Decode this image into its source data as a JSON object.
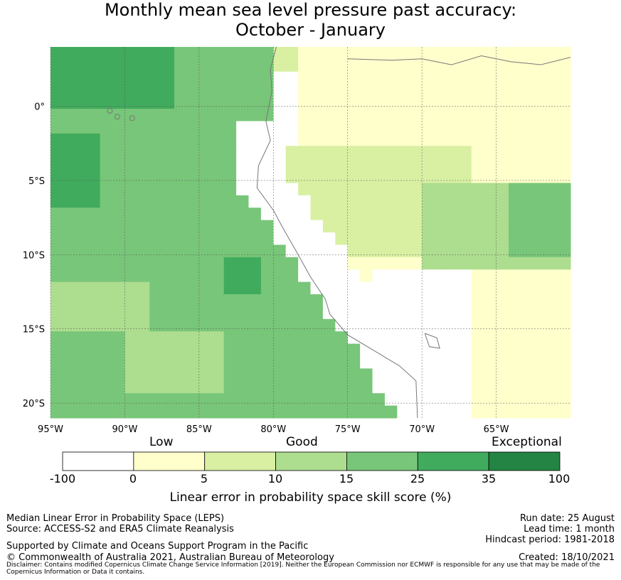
{
  "title": {
    "line1": "Monthly mean sea level pressure past accuracy:",
    "line2": "October - January"
  },
  "map": {
    "lon_range": [
      -95,
      -60
    ],
    "lat_range": [
      -21,
      4
    ],
    "x_ticks": [
      {
        "lon": -95,
        "label": "95°W"
      },
      {
        "lon": -90,
        "label": "90°W"
      },
      {
        "lon": -85,
        "label": "85°W"
      },
      {
        "lon": -80,
        "label": "80°W"
      },
      {
        "lon": -75,
        "label": "75°W"
      },
      {
        "lon": -70,
        "label": "70°W"
      },
      {
        "lon": -65,
        "label": "65°W"
      }
    ],
    "y_ticks": [
      {
        "lat": 0,
        "label": "0°"
      },
      {
        "lat": -5,
        "label": "5°S"
      },
      {
        "lat": -10,
        "label": "10°S"
      },
      {
        "lat": -15,
        "label": "15°S"
      },
      {
        "lat": -20,
        "label": "20°S"
      }
    ],
    "grid": true,
    "coastline_color": "#777777"
  },
  "colorbar": {
    "categories": [
      "Low",
      "Good",
      "Exceptional"
    ],
    "bounds": [
      "-100",
      "0",
      "5",
      "10",
      "15",
      "25",
      "35",
      "100"
    ],
    "colors": [
      "#ffffff",
      "#ffffcc",
      "#d9f0a3",
      "#addd8e",
      "#78c679",
      "#41ab5d",
      "#238443"
    ],
    "label": "Linear error in probability space skill score (%)"
  },
  "footer": {
    "left": [
      "Median Linear Error in Probability Space (LEPS)",
      "Source: ACCESS-S2 and ERA5 Climate Reanalysis",
      "Supported by Climate and Oceans Support Program in the Pacific",
      "© Commonwealth of Australia 2021, Australian Bureau of Meteorology"
    ],
    "right": [
      "Run date: 25 August",
      "Lead time: 1 month",
      "Hindcast period: 1981-2018",
      "Created: 18/10/2021"
    ],
    "disclaimer": "Disclaimer: Contains modified Copernicus Climate Change Service Information [2019]. Neither the European Commission nor ECMWF is responsible for any use that may be made of the Copernicus Information or Data it contains."
  }
}
